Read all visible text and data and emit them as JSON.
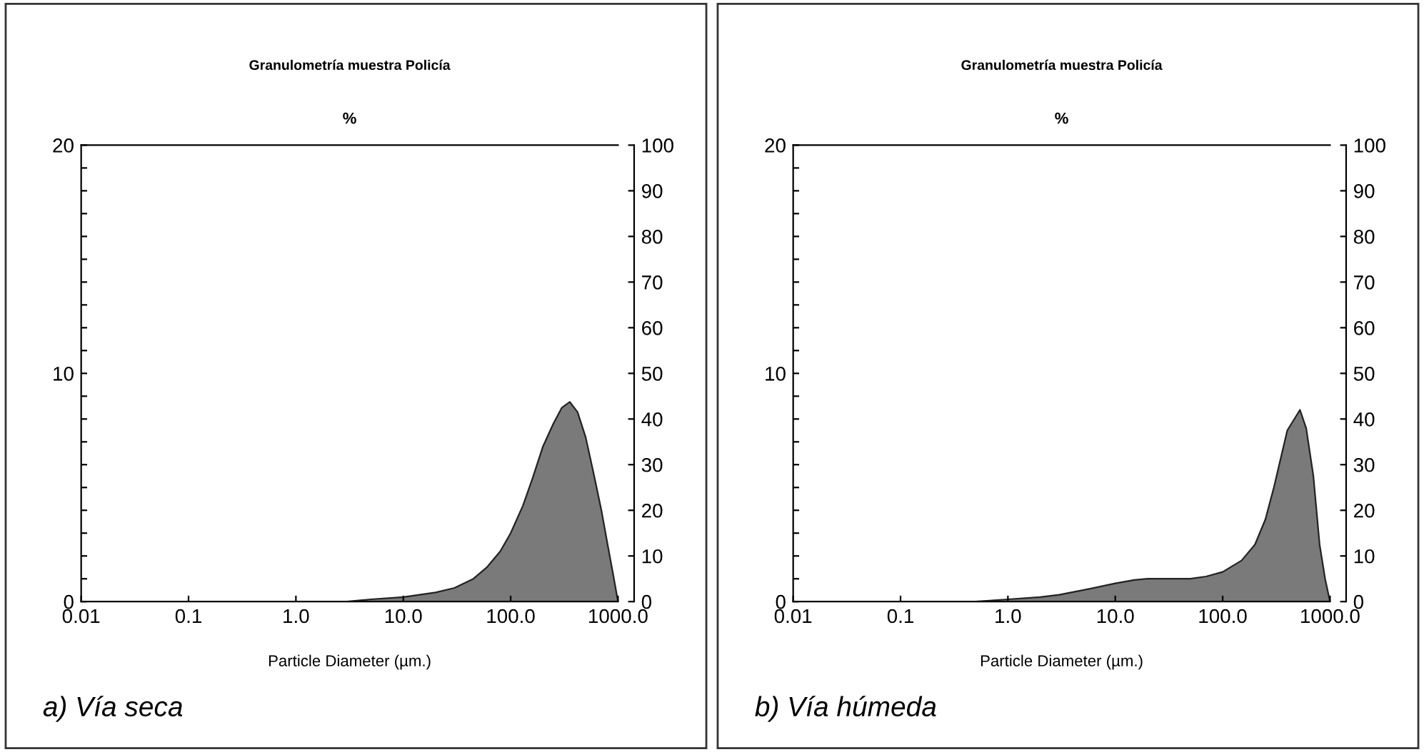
{
  "chart_data": [
    {
      "type": "area",
      "title": "Granulometría muestra Policía",
      "ylabel": "%",
      "xlabel": "Particle Diameter (µm.)",
      "annotations": [
        "a) Vía seca"
      ],
      "log": "x",
      "x": [
        3,
        5,
        10,
        20,
        30,
        45,
        60,
        80,
        100,
        130,
        160,
        200,
        250,
        300,
        355,
        420,
        500,
        600,
        700,
        800,
        900,
        1000
      ],
      "series": [
        {
          "color": "#7a7a7a",
          "values": [
            0,
            0.1,
            0.2,
            0.4,
            0.6,
            1.0,
            1.5,
            2.2,
            3,
            4.2,
            5.4,
            6.8,
            7.8,
            8.5,
            8.75,
            8.3,
            7.2,
            5.5,
            4.0,
            2.5,
            1.2,
            0
          ]
        }
      ],
      "xlim": [
        0.01,
        1000
      ],
      "xticks": [
        {
          "value": 0.01,
          "label": "0.01"
        },
        {
          "value": 0.1,
          "label": "0.1"
        },
        {
          "value": 1,
          "label": "1.0"
        },
        {
          "value": 10,
          "label": "10.0"
        },
        {
          "value": 100,
          "label": "100.0"
        },
        {
          "value": 1000,
          "label": "1000.0"
        }
      ],
      "ylim": [
        0,
        20
      ],
      "yticks": [
        0,
        {
          "value": 1,
          "label": null
        },
        {
          "value": 2,
          "label": null
        },
        {
          "value": 3,
          "label": null
        },
        {
          "value": 4,
          "label": null
        },
        {
          "value": 5,
          "label": null
        },
        {
          "value": 6,
          "label": null
        },
        {
          "value": 7,
          "label": null
        },
        {
          "value": 8,
          "label": null
        },
        {
          "value": 9,
          "label": null
        },
        10,
        {
          "value": 11,
          "label": null
        },
        {
          "value": 12,
          "label": null
        },
        {
          "value": 13,
          "label": null
        },
        {
          "value": 14,
          "label": null
        },
        {
          "value": 15,
          "label": null
        },
        {
          "value": 16,
          "label": null
        },
        {
          "value": 17,
          "label": null
        },
        {
          "value": 18,
          "label": null
        },
        {
          "value": 19,
          "label": null
        },
        20
      ],
      "y2lim": [
        0,
        100
      ],
      "y2ticks": [
        0,
        10,
        20,
        30,
        40,
        50,
        60,
        70,
        80,
        90,
        100
      ],
      "grid": false,
      "legend": false
    },
    {
      "type": "area",
      "title": "Granulometría muestra Policía",
      "ylabel": "%",
      "xlabel": "Particle Diameter (µm.)",
      "annotations": [
        "b) Vía húmeda"
      ],
      "log": "x",
      "x": [
        0.5,
        1,
        2,
        3,
        5,
        10,
        15,
        20,
        30,
        50,
        70,
        100,
        150,
        200,
        250,
        300,
        400,
        525,
        600,
        700,
        800,
        900,
        1000
      ],
      "series": [
        {
          "color": "#7a7a7a",
          "values": [
            0,
            0.1,
            0.2,
            0.3,
            0.5,
            0.8,
            0.95,
            1.0,
            1.0,
            1.0,
            1.1,
            1.3,
            1.8,
            2.5,
            3.6,
            5.0,
            7.5,
            8.4,
            7.6,
            5.5,
            2.5,
            1.0,
            0
          ]
        }
      ],
      "xlim": [
        0.01,
        1000
      ],
      "xticks": [
        {
          "value": 0.01,
          "label": "0.01"
        },
        {
          "value": 0.1,
          "label": "0.1"
        },
        {
          "value": 1,
          "label": "1.0"
        },
        {
          "value": 10,
          "label": "10.0"
        },
        {
          "value": 100,
          "label": "100.0"
        },
        {
          "value": 1000,
          "label": "1000.0"
        }
      ],
      "ylim": [
        0,
        20
      ],
      "yticks": [
        0,
        {
          "value": 1,
          "label": null
        },
        {
          "value": 2,
          "label": null
        },
        {
          "value": 3,
          "label": null
        },
        {
          "value": 4,
          "label": null
        },
        {
          "value": 5,
          "label": null
        },
        {
          "value": 6,
          "label": null
        },
        {
          "value": 7,
          "label": null
        },
        {
          "value": 8,
          "label": null
        },
        {
          "value": 9,
          "label": null
        },
        10,
        {
          "value": 11,
          "label": null
        },
        {
          "value": 12,
          "label": null
        },
        {
          "value": 13,
          "label": null
        },
        {
          "value": 14,
          "label": null
        },
        {
          "value": 15,
          "label": null
        },
        {
          "value": 16,
          "label": null
        },
        {
          "value": 17,
          "label": null
        },
        {
          "value": 18,
          "label": null
        },
        {
          "value": 19,
          "label": null
        },
        20
      ],
      "y2lim": [
        0,
        100
      ],
      "y2ticks": [
        0,
        10,
        20,
        30,
        40,
        50,
        60,
        70,
        80,
        90,
        100
      ],
      "grid": false,
      "legend": false
    }
  ]
}
